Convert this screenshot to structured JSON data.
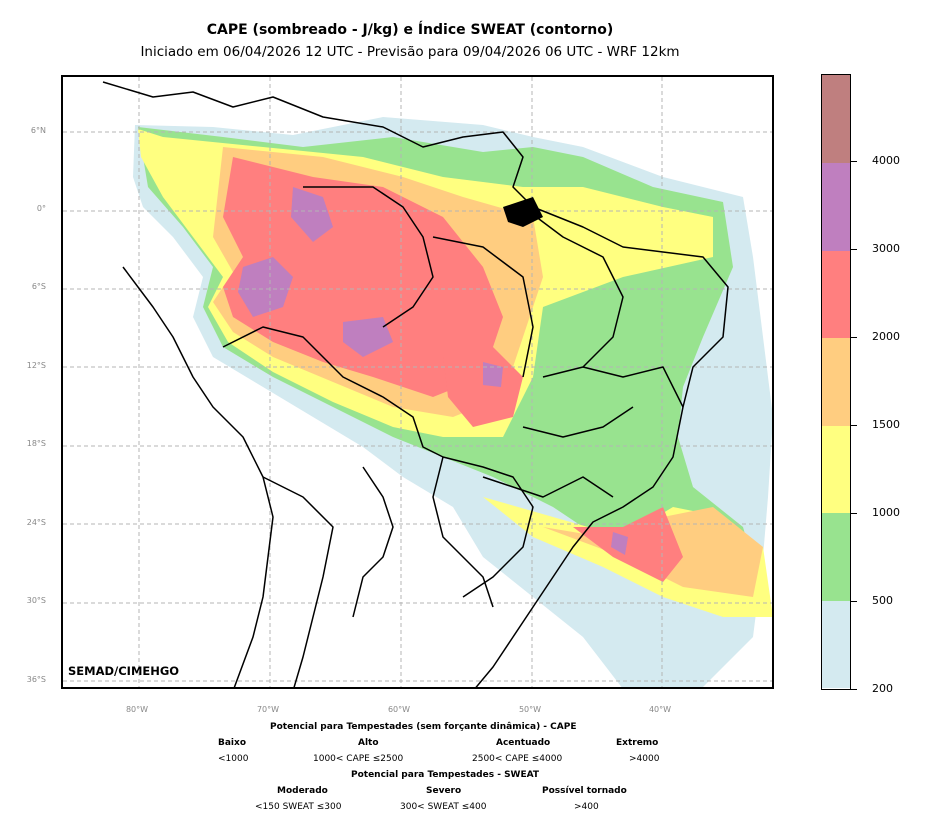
{
  "title_line1": "CAPE (sombreado - J/kg) e Índice SWEAT (contorno)",
  "title_line2": "Iniciado em 06/04/2026 12 UTC - Previsão para 09/04/2026 06 UTC - WRF 12km",
  "credit": "SEMAD/CIMEHGO",
  "lat_labels": [
    "6°N",
    "0°",
    "6°S",
    "12°S",
    "18°S",
    "24°S",
    "30°S",
    "36°S"
  ],
  "lon_labels": [
    "80°W",
    "70°W",
    "60°W",
    "50°W",
    "40°W"
  ],
  "colorbar": {
    "colors": [
      "#d4eaf0",
      "#98e38f",
      "#ffff80",
      "#ffcd80",
      "#ff7f7f",
      "#bf7fbf",
      "#bf7f7f"
    ],
    "labels": [
      "200",
      "500",
      "1000",
      "1500",
      "2000",
      "3000",
      "4000"
    ]
  },
  "legend": {
    "cape_title": "Potencial para Tempestades (sem forçante dinâmica) - CAPE",
    "cape_levels": [
      "Baixo",
      "Alto",
      "Acentuado",
      "Extremo"
    ],
    "cape_ranges": [
      "<1000",
      "1000< CAPE ≤2500",
      "2500< CAPE ≤4000",
      ">4000"
    ],
    "sweat_title": "Potencial para Tempestades - SWEAT",
    "sweat_levels": [
      "Moderado",
      "Severo",
      "Possível tornado"
    ],
    "sweat_ranges": [
      "<150 SWEAT ≤300",
      "300< SWEAT ≤400",
      ">400"
    ]
  }
}
